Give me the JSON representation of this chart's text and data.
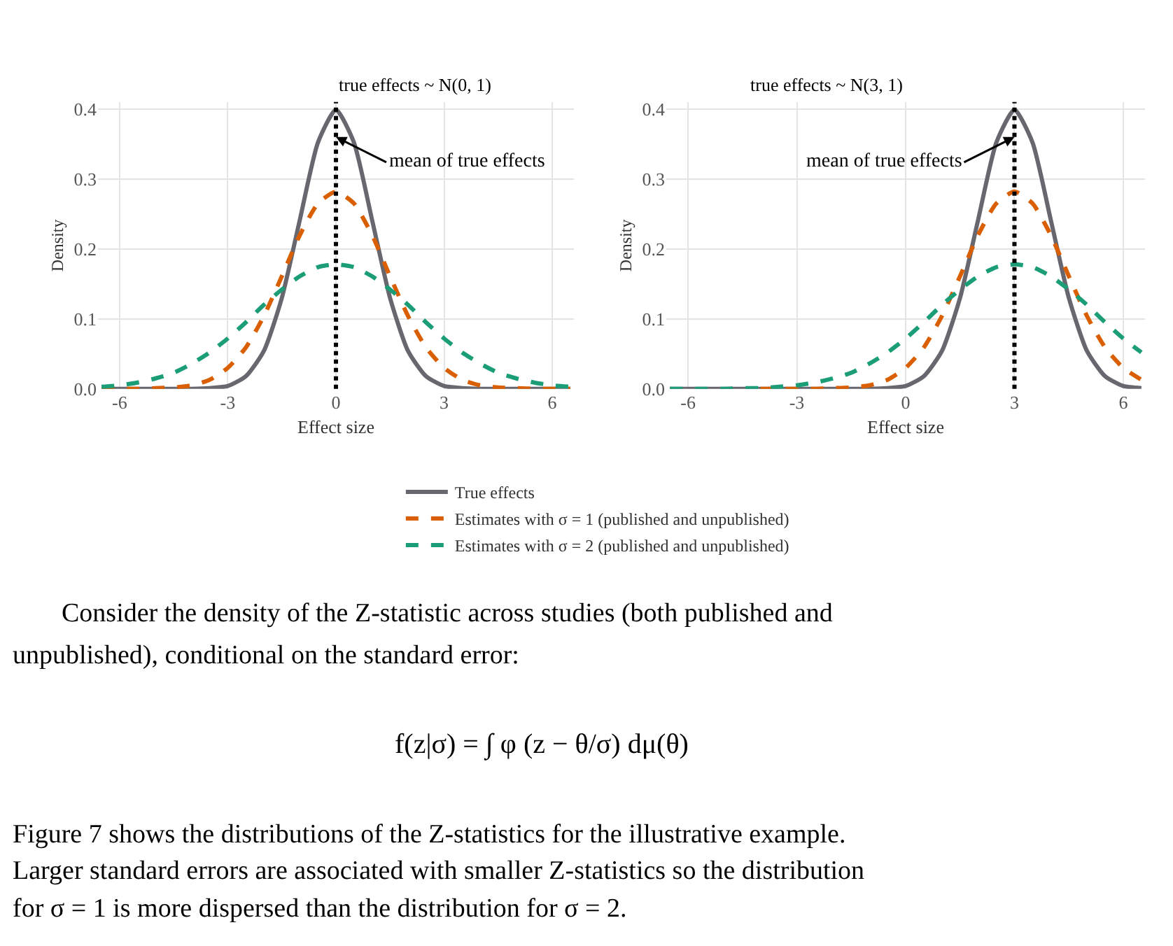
{
  "chart_data": [
    {
      "type": "line",
      "title": "true effects ~ N(0, 1)",
      "xlabel": "Effect size",
      "ylabel": "Density",
      "x": [
        -6.5,
        -6,
        -5.5,
        -5,
        -4.5,
        -4,
        -3.5,
        -3,
        -2.5,
        -2,
        -1.5,
        -1,
        -0.5,
        0,
        0.5,
        1,
        1.5,
        2,
        2.5,
        3,
        3.5,
        4,
        4.5,
        5,
        5.5,
        6,
        6.5
      ],
      "series": [
        {
          "name": "True effects",
          "color": "#68676f",
          "line_style": "solid",
          "values": [
            0,
            0,
            0,
            0,
            0,
            0,
            0.001,
            0.004,
            0.018,
            0.054,
            0.13,
            0.242,
            0.352,
            0.399,
            0.352,
            0.242,
            0.13,
            0.054,
            0.018,
            0.004,
            0.001,
            0,
            0,
            0,
            0,
            0,
            0
          ]
        },
        {
          "name": "Estimates with σ = 1 (published and unpublished)",
          "color": "#d95f02",
          "line_style": "dashed",
          "values": [
            0,
            0,
            0,
            0.001,
            0.002,
            0.005,
            0.013,
            0.03,
            0.059,
            0.104,
            0.161,
            0.22,
            0.265,
            0.282,
            0.265,
            0.22,
            0.161,
            0.104,
            0.059,
            0.03,
            0.013,
            0.005,
            0.002,
            0.001,
            0,
            0,
            0
          ]
        },
        {
          "name": "Estimates with σ = 2 (published and unpublished)",
          "color": "#1b9e77",
          "line_style": "dashed",
          "values": [
            0.003,
            0.005,
            0.009,
            0.015,
            0.023,
            0.036,
            0.052,
            0.072,
            0.095,
            0.12,
            0.142,
            0.161,
            0.174,
            0.178,
            0.174,
            0.161,
            0.142,
            0.12,
            0.095,
            0.072,
            0.052,
            0.036,
            0.023,
            0.015,
            0.009,
            0.005,
            0.003
          ]
        }
      ],
      "xlim": [
        -6.6,
        6.6
      ],
      "xticks": [
        -6,
        -3,
        0,
        3,
        6
      ],
      "ylim": [
        0,
        0.41
      ],
      "yticks": [
        {
          "value": 0,
          "label": "0.0"
        },
        {
          "value": 0.1,
          "label": "0.1"
        },
        {
          "value": 0.2,
          "label": "0.2"
        },
        {
          "value": 0.3,
          "label": "0.3"
        },
        {
          "value": 0.4,
          "label": "0.4"
        }
      ],
      "ref_lines": [
        {
          "axis": "x",
          "value": 0,
          "label": null,
          "color": "#000000",
          "line_style": "dotted"
        }
      ],
      "grid": true,
      "legend": "bottom",
      "marker": "none",
      "annotations": [
        {
          "text": "mean of true effects",
          "x": 0,
          "y": 0.36
        },
        "Consider the density of the Z-statistic across studies (both published and",
        "unpublished), conditional on the standard error:",
        "f(z|σ) = ∫ φ (z − θ/σ) dμ(θ)",
        "Figure 7 shows the distributions of the Z-statistics for the illustrative example.",
        "Larger standard errors are associated with smaller Z-statistics so the distribution",
        "for σ = 1 is more dispersed than the distribution for σ = 2."
      ]
    },
    {
      "type": "line",
      "title": "true effects ~ N(3, 1)",
      "xlabel": "Effect size",
      "ylabel": "Density",
      "x": [
        -6.5,
        -6,
        -5.5,
        -5,
        -4.5,
        -4,
        -3.5,
        -3,
        -2.5,
        -2,
        -1.5,
        -1,
        -0.5,
        0,
        0.5,
        1,
        1.5,
        2,
        2.5,
        3,
        3.5,
        4,
        4.5,
        5,
        5.5,
        6,
        6.5
      ],
      "series": [
        {
          "name": "True effects",
          "color": "#68676f",
          "line_style": "solid",
          "values": [
            0,
            0,
            0,
            0,
            0,
            0,
            0,
            0,
            0,
            0,
            0,
            0,
            0.001,
            0.004,
            0.018,
            0.054,
            0.13,
            0.242,
            0.352,
            0.399,
            0.352,
            0.242,
            0.13,
            0.054,
            0.018,
            0.004,
            0.001
          ]
        },
        {
          "name": "Estimates with σ = 1 (published and unpublished)",
          "color": "#d95f02",
          "line_style": "dashed",
          "values": [
            null,
            null,
            null,
            null,
            null,
            0,
            0,
            0,
            0,
            0.001,
            0.002,
            0.005,
            0.013,
            0.03,
            0.059,
            0.104,
            0.161,
            0.22,
            0.265,
            0.282,
            0.265,
            0.22,
            0.161,
            0.104,
            0.059,
            0.03,
            0.013
          ]
        },
        {
          "name": "Estimates with σ = 2 (published and unpublished)",
          "color": "#1b9e77",
          "line_style": "dashed",
          "values": [
            0,
            0,
            0,
            0,
            0.001,
            0.001,
            0.003,
            0.005,
            0.009,
            0.015,
            0.023,
            0.036,
            0.052,
            0.072,
            0.095,
            0.12,
            0.142,
            0.161,
            0.174,
            0.178,
            0.174,
            0.161,
            0.142,
            0.12,
            0.095,
            0.072,
            0.052
          ]
        }
      ],
      "xlim": [
        -6.6,
        6.6
      ],
      "xticks": [
        -6,
        -3,
        0,
        3,
        6
      ],
      "ylim": [
        0,
        0.41
      ],
      "yticks": [
        {
          "value": 0,
          "label": "0.0"
        },
        {
          "value": 0.1,
          "label": "0.1"
        },
        {
          "value": 0.2,
          "label": "0.2"
        },
        {
          "value": 0.3,
          "label": "0.3"
        },
        {
          "value": 0.4,
          "label": "0.4"
        }
      ],
      "ref_lines": [
        {
          "axis": "x",
          "value": 3,
          "label": null,
          "color": "#000000",
          "line_style": "dotted"
        }
      ],
      "grid": true,
      "legend": "bottom",
      "marker": "none",
      "annotations": [
        {
          "text": "mean of true effects",
          "x": 3,
          "y": 0.36
        }
      ]
    }
  ]
}
